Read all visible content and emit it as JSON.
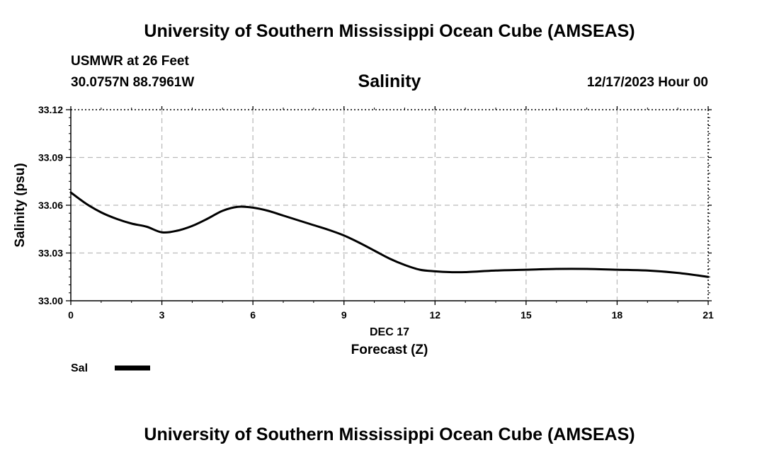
{
  "header": {
    "title": "University of Southern Mississippi Ocean Cube (AMSEAS)",
    "station": "USMWR at 26 Feet",
    "coords": "30.0757N  88.7961W",
    "datetime": "12/17/2023 Hour 00"
  },
  "footer": {
    "title": "University of Southern Mississippi Ocean Cube (AMSEAS)"
  },
  "legend": {
    "label": "Sal"
  },
  "colors": {
    "line": "#000000",
    "grid": "#bbbbbb",
    "background": "#ffffff"
  },
  "chart_data": {
    "type": "line",
    "title": "Salinity",
    "xlabel": "Forecast (Z)",
    "xsublabel": "DEC 17",
    "ylabel": "Salinity (psu)",
    "xlim": [
      0,
      21
    ],
    "ylim": [
      33.0,
      33.12
    ],
    "xticks": [
      0,
      3,
      6,
      9,
      12,
      15,
      18,
      21
    ],
    "xtick_labels": [
      "0",
      "3",
      "6",
      "9",
      "12",
      "15",
      "18",
      "21"
    ],
    "yticks": [
      33.0,
      33.03,
      33.06,
      33.09,
      33.12
    ],
    "ytick_labels": [
      "33.00",
      "33.03",
      "33.06",
      "33.09",
      "33.12"
    ],
    "grid": true,
    "series": [
      {
        "name": "Sal",
        "x": [
          0,
          0.5,
          1,
          1.5,
          2,
          2.5,
          3,
          3.5,
          4,
          4.5,
          5,
          5.5,
          6,
          6.5,
          7,
          7.5,
          8,
          8.5,
          9,
          9.5,
          10,
          10.5,
          11,
          11.5,
          12,
          12.5,
          13,
          14,
          15,
          16,
          17,
          18,
          19,
          20,
          21
        ],
        "values": [
          33.068,
          33.061,
          33.0555,
          33.0515,
          33.0485,
          33.0465,
          33.043,
          33.044,
          33.047,
          33.0515,
          33.0565,
          33.059,
          33.0585,
          33.0565,
          33.0535,
          33.0505,
          33.0475,
          33.0445,
          33.041,
          33.0365,
          33.0315,
          33.0265,
          33.0225,
          33.0195,
          33.0185,
          33.018,
          33.018,
          33.019,
          33.0195,
          33.02,
          33.02,
          33.0195,
          33.019,
          33.0175,
          33.015
        ]
      }
    ]
  }
}
